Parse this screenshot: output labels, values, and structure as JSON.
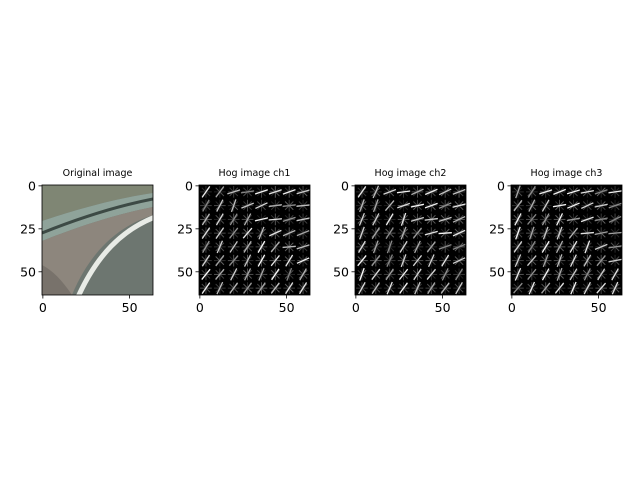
{
  "figure": {
    "background": "#ffffff"
  },
  "chart_data": [
    {
      "type": "image",
      "title": "Original image",
      "image_kind": "photo",
      "xlabel": "",
      "ylabel": "",
      "xlim": [
        -0.5,
        63.5
      ],
      "ylim": [
        63.5,
        -0.5
      ],
      "x_ticks": [
        0,
        50
      ],
      "y_ticks": [
        0,
        25,
        50
      ],
      "x_tick_labels": [
        "0",
        "50"
      ],
      "y_tick_labels": [
        "0",
        "25",
        "50"
      ],
      "colors": {
        "grass_top": "#7f8674",
        "guardrail": "#8fa39a",
        "guardrail_dark": "#3d4a45",
        "shoulder": "#8d867d",
        "road": "#6d7670",
        "lane_line": "#e8ebe6",
        "lower_left": "#78726b"
      }
    },
    {
      "type": "image",
      "title": "Hog image ch1",
      "image_kind": "hog",
      "xlabel": "",
      "ylabel": "",
      "xlim": [
        -0.5,
        63.5
      ],
      "ylim": [
        63.5,
        -0.5
      ],
      "x_ticks": [
        0,
        50
      ],
      "y_ticks": [
        0,
        25,
        50
      ],
      "x_tick_labels": [
        "0",
        "50"
      ],
      "y_tick_labels": [
        "0",
        "25",
        "50"
      ],
      "grid_cells": 8,
      "seed": 11
    },
    {
      "type": "image",
      "title": "Hog image ch2",
      "image_kind": "hog",
      "xlabel": "",
      "ylabel": "",
      "xlim": [
        -0.5,
        63.5
      ],
      "ylim": [
        63.5,
        -0.5
      ],
      "x_ticks": [
        0,
        50
      ],
      "y_ticks": [
        0,
        25,
        50
      ],
      "x_tick_labels": [
        "0",
        "50"
      ],
      "y_tick_labels": [
        "0",
        "25",
        "50"
      ],
      "grid_cells": 8,
      "seed": 23
    },
    {
      "type": "image",
      "title": "Hog image ch3",
      "image_kind": "hog",
      "xlabel": "",
      "ylabel": "",
      "xlim": [
        -0.5,
        63.5
      ],
      "ylim": [
        63.5,
        -0.5
      ],
      "x_ticks": [
        0,
        50
      ],
      "y_ticks": [
        0,
        25,
        50
      ],
      "x_tick_labels": [
        "0",
        "50"
      ],
      "y_tick_labels": [
        "0",
        "25",
        "50"
      ],
      "grid_cells": 8,
      "seed": 37
    }
  ]
}
